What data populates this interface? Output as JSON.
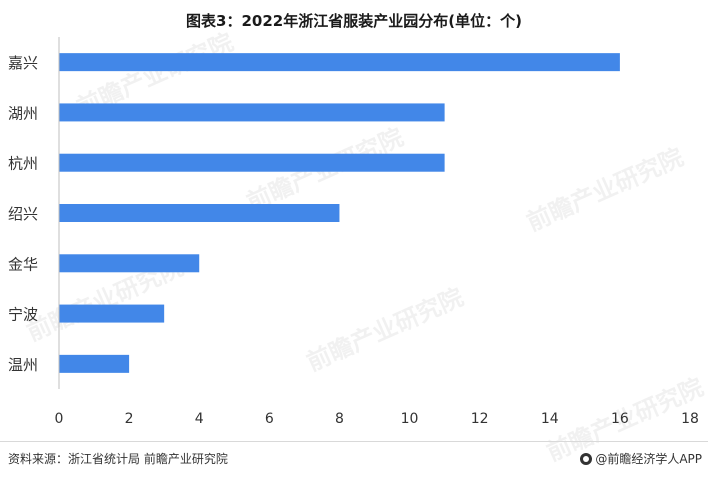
{
  "title": "图表3：2022年浙江省服装产业园分布(单位：个)",
  "source": "资料来源：浙江省统计局 前瞻产业研究院",
  "brand": "@前瞻经济学人APP",
  "watermark": "前瞻产业研究院",
  "colors": {
    "bar": "#4287e8",
    "axis": "#bfbfbf",
    "text": "#333333"
  },
  "chart_data": {
    "type": "bar",
    "orientation": "horizontal",
    "categories": [
      "嘉兴",
      "湖州",
      "杭州",
      "绍兴",
      "金华",
      "宁波",
      "温州"
    ],
    "values": [
      16,
      11,
      11,
      8,
      4,
      3,
      2
    ],
    "xlim": [
      0,
      18
    ],
    "xticks": [
      0,
      2,
      4,
      6,
      8,
      10,
      12,
      14,
      16,
      18
    ],
    "grid": false,
    "legend": "none"
  }
}
